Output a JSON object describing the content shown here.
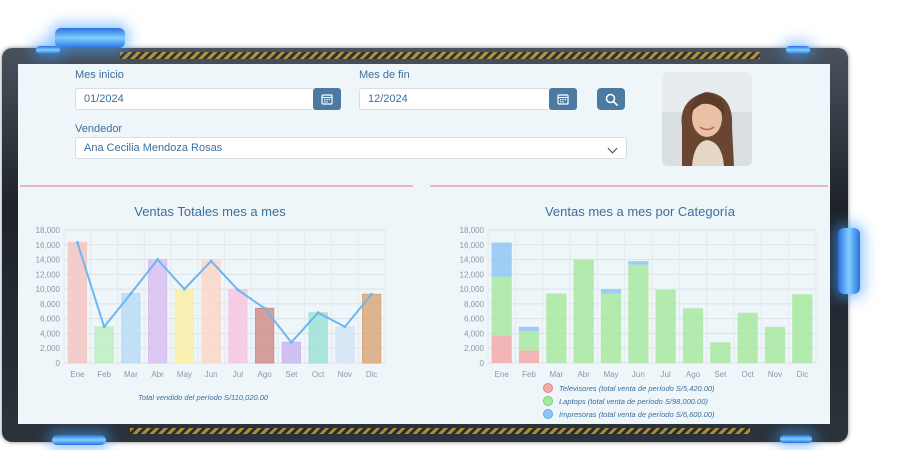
{
  "filters": {
    "start_label": "Mes inicio",
    "start_value": "01/2024",
    "end_label": "Mes de fin",
    "end_value": "12/2024",
    "seller_label": "Vendedor",
    "seller_value": "Ana Cecilia Mendoza Rosas"
  },
  "colors": {
    "accent": "#4c7aa1",
    "label": "#3d6f9a",
    "televisores": "#f2aaaa",
    "laptops": "#a8e8a0",
    "impresoras": "#8fc5f5",
    "line": "#6eb6f0"
  },
  "icons": {
    "calendar": "calendar-icon",
    "search": "search-icon",
    "dropdown": "chevron-down-icon"
  },
  "chart_data": [
    {
      "type": "bar",
      "title": "Ventas Totales mes a mes",
      "categories": [
        "Ene",
        "Feb",
        "Mar",
        "Abr",
        "May",
        "Jun",
        "Jul",
        "Ago",
        "Set",
        "Oct",
        "Nov",
        "Dic"
      ],
      "values": [
        16300,
        4900,
        9400,
        14000,
        10000,
        13800,
        9900,
        7400,
        2800,
        6800,
        4900,
        9300
      ],
      "bar_colors": [
        "#f5c6c2",
        "#bdeec0",
        "#b8dcf6",
        "#d8bff0",
        "#fbeea6",
        "#fbd6c8",
        "#f7c6e0",
        "#cf8e8a",
        "#c9b8ee",
        "#9fe0d4",
        "#d4e4f3",
        "#d9a87a"
      ],
      "line_overlay": true,
      "ylim": [
        0,
        18000
      ],
      "yticks": [
        "0",
        "2,000",
        "4,000",
        "6,000",
        "8,000",
        "10,000",
        "12,000",
        "14,000",
        "16,000",
        "18,000"
      ],
      "caption": "Total vendido del período S/110,020.00"
    },
    {
      "type": "bar",
      "stacked": true,
      "title": "Ventas mes a mes por Categoría",
      "categories": [
        "Ene",
        "Feb",
        "Mar",
        "Abr",
        "May",
        "Jun",
        "Jul",
        "Ago",
        "Set",
        "Oct",
        "Nov",
        "Dic"
      ],
      "series": [
        {
          "name": "Televisores (total venta de período S/5,420.00)",
          "values": [
            3700,
            1700,
            0,
            0,
            0,
            0,
            0,
            0,
            0,
            0,
            0,
            0
          ]
        },
        {
          "name": "Laptops (total venta de período S/98,000.00)",
          "values": [
            8000,
            2600,
            9400,
            14000,
            9400,
            13300,
            9900,
            7400,
            2800,
            6800,
            4900,
            9300
          ]
        },
        {
          "name": "Impresoras (total venta de período S/6,600.00)",
          "values": [
            4600,
            600,
            0,
            0,
            600,
            500,
            0,
            0,
            0,
            0,
            0,
            0
          ]
        }
      ],
      "ylim": [
        0,
        18000
      ],
      "yticks": [
        "0",
        "2,000",
        "4,000",
        "6,000",
        "8,000",
        "10,000",
        "12,000",
        "14,000",
        "16,000",
        "18,000"
      ],
      "legend": "bottom"
    }
  ]
}
